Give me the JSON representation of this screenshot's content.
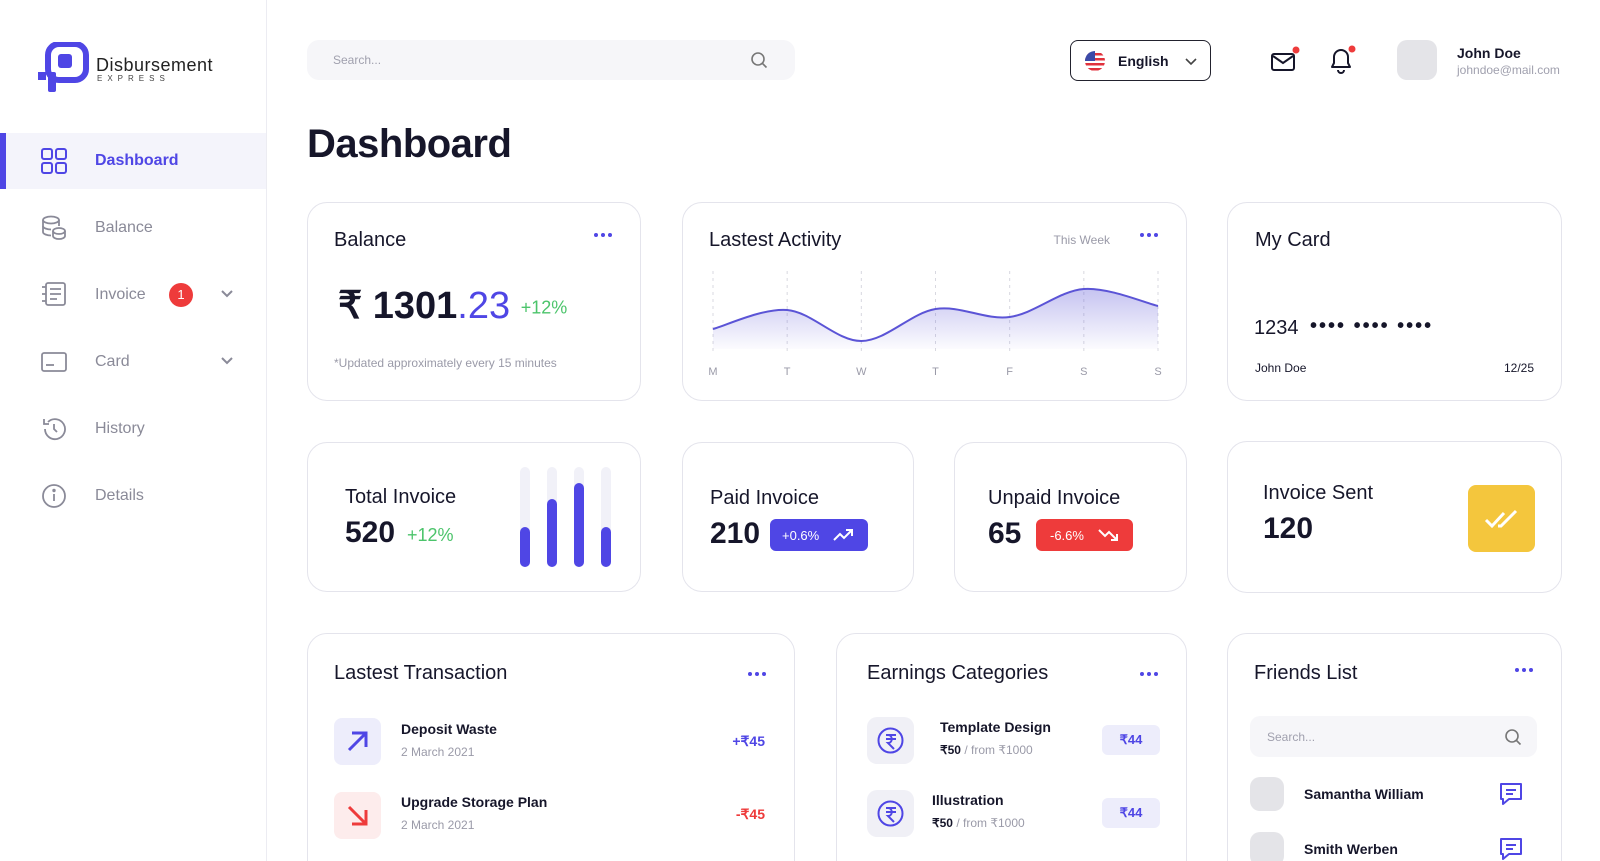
{
  "brand": {
    "name": "Disbursement",
    "tagline": "EXPRESS"
  },
  "nav": [
    {
      "label": "Dashboard"
    },
    {
      "label": "Balance"
    },
    {
      "label": "Invoice",
      "badge": 1
    },
    {
      "label": "Card"
    },
    {
      "label": "History"
    },
    {
      "label": "Details"
    }
  ],
  "header": {
    "search_placeholder": "Search...",
    "language": "English",
    "user": {
      "name": "John Doe",
      "email": "johndoe@mail.com"
    }
  },
  "page_title": "Dashboard",
  "balance": {
    "title": "Balance",
    "currency": "₹",
    "amount_whole": "1301",
    "amount_decimal": ".23",
    "change": "+12%",
    "note": "*Updated approximately every 15 minutes"
  },
  "activity": {
    "title": "Lastest Activity",
    "period": "This Week",
    "chart_data": {
      "type": "line",
      "categories": [
        "M",
        "T",
        "W",
        "T",
        "F",
        "S",
        "S"
      ],
      "values": [
        20,
        39,
        8,
        40,
        32,
        60,
        43
      ],
      "ylim": [
        0,
        70
      ],
      "color": "#5b54d6"
    }
  },
  "my_card": {
    "title": "My Card",
    "number_first": "1234",
    "number_masked": "•••• •••• ••••",
    "holder": "John Doe",
    "expiry": "12/25"
  },
  "total_invoice": {
    "title": "Total Invoice",
    "value": 520,
    "change": "+12%",
    "chart_data": {
      "type": "bar",
      "values": [
        40,
        68,
        84,
        40
      ],
      "ylim": [
        0,
        100
      ],
      "color": "#4f46e5"
    }
  },
  "paid_invoice": {
    "title": "Paid Invoice",
    "value": 210,
    "change": "+0.6%"
  },
  "unpaid_invoice": {
    "title": "Unpaid Invoice",
    "value": 65,
    "change": "-6.6%"
  },
  "invoice_sent": {
    "title": "Invoice Sent",
    "value": 120
  },
  "transactions": {
    "title": "Lastest Transaction",
    "items": [
      {
        "name": "Deposit Waste",
        "date": "2 March 2021",
        "amount": "+₹45"
      },
      {
        "name": "Upgrade Storage Plan",
        "date": "2 March 2021",
        "amount": "-₹45"
      }
    ]
  },
  "earnings": {
    "title": "Earnings Categories",
    "items": [
      {
        "name": "Template Design",
        "price": "₹50",
        "from": "/ from ₹1000",
        "badge": "₹44"
      },
      {
        "name": "Illustration",
        "price": "₹50",
        "from": "/ from ₹1000",
        "badge": "₹44"
      }
    ]
  },
  "friends": {
    "title": "Friends List",
    "search_placeholder": "Search...",
    "items": [
      {
        "name": "Samantha William"
      },
      {
        "name": "Smith Werben"
      }
    ]
  }
}
